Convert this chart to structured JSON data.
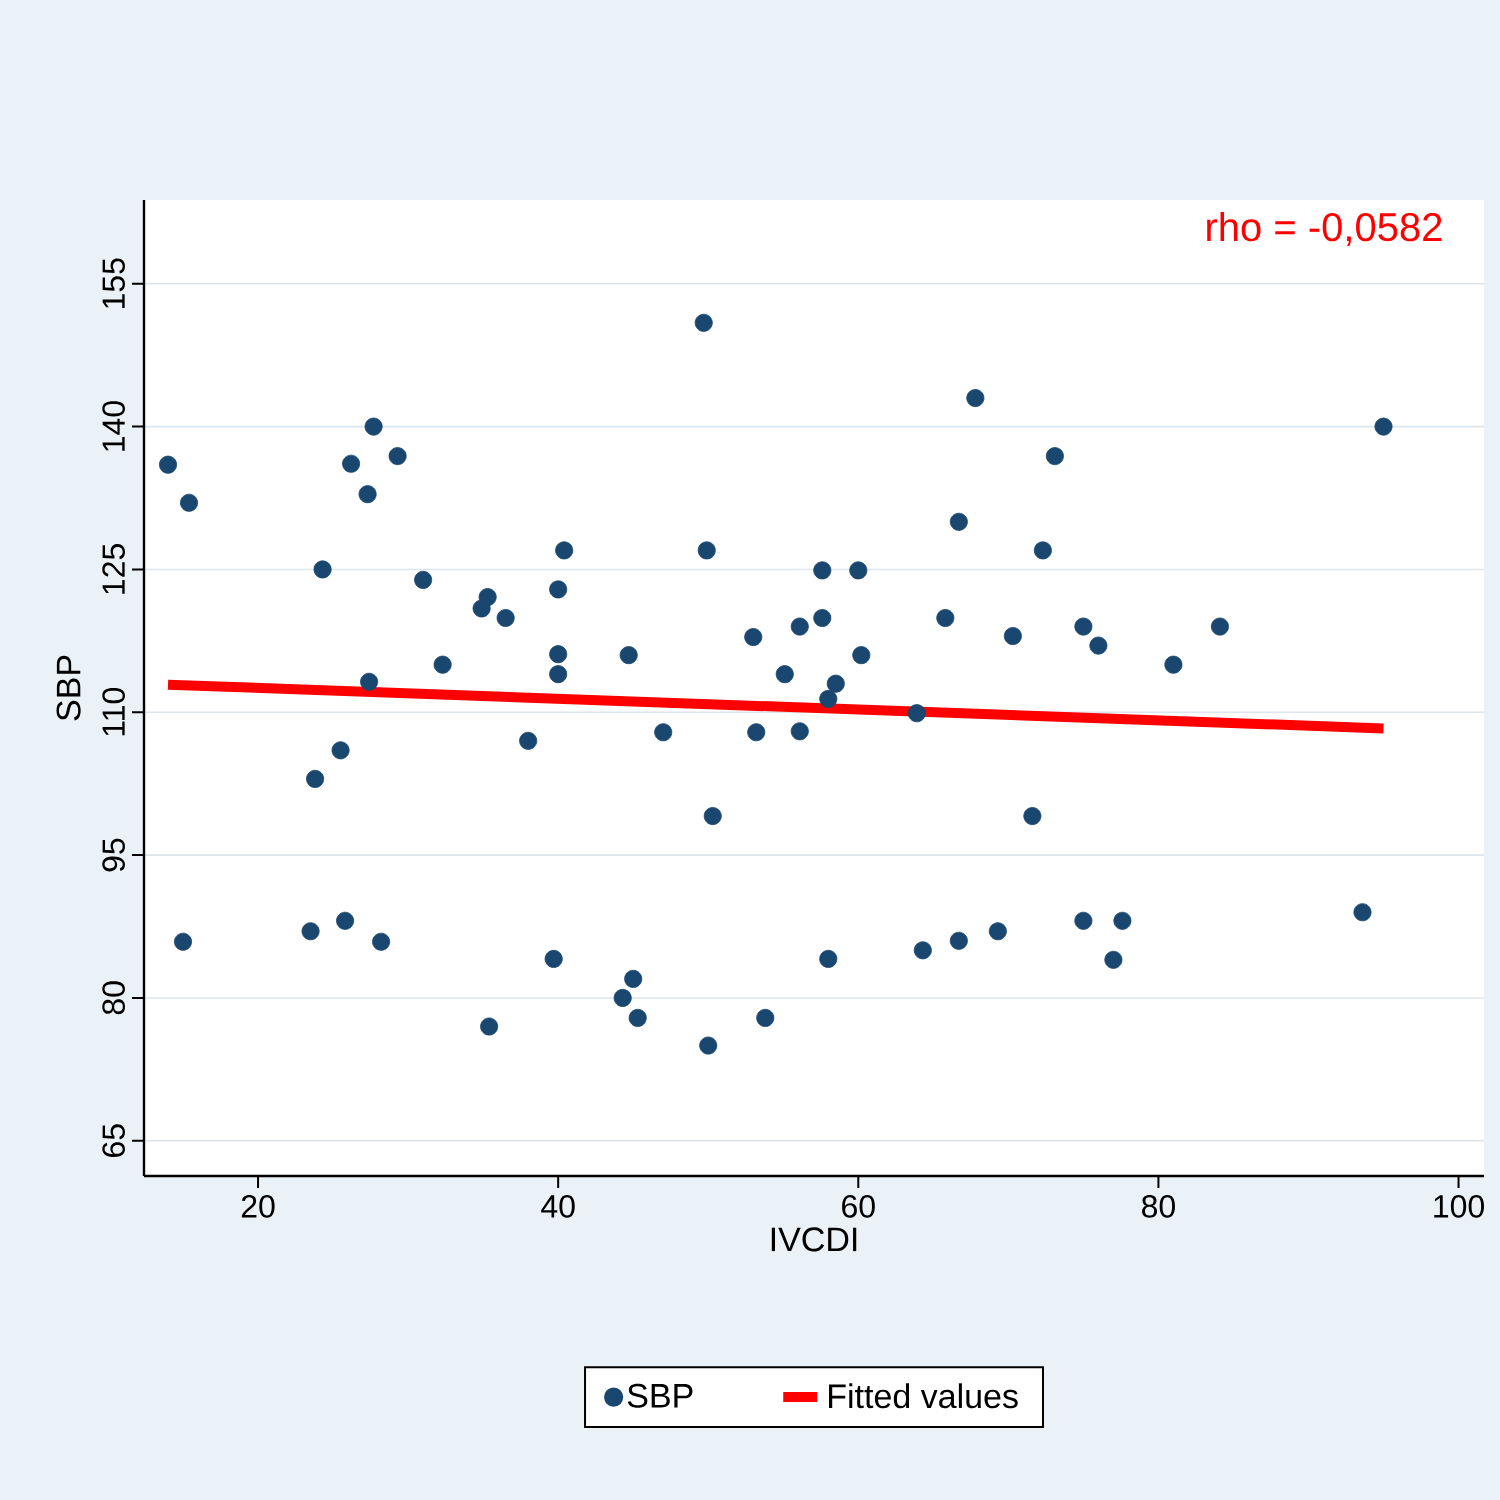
{
  "chart_data": {
    "type": "scatter",
    "xlabel": "IVCDI",
    "ylabel": "SBP",
    "xlim": [
      12.4,
      101.7
    ],
    "ylim": [
      61.3,
      163.8
    ],
    "xticks": [
      20,
      40,
      60,
      80,
      100
    ],
    "yticks": [
      65,
      80,
      95,
      110,
      125,
      140,
      155
    ],
    "grid": "y",
    "legend": "bottom",
    "annotations": [
      "rho = -0,0582"
    ],
    "series": [
      {
        "name": "SBP",
        "color": "#1a476f",
        "marker": "circle",
        "x": [
          14.0,
          15.4,
          15.0,
          24.3,
          23.8,
          25.5,
          23.5,
          25.8,
          28.2,
          26.2,
          27.3,
          27.7,
          29.3,
          27.4,
          31.0,
          32.3,
          34.9,
          35.3,
          36.5,
          35.4,
          38.0,
          40.4,
          40.0,
          40.0,
          40.0,
          39.7,
          44.7,
          44.3,
          45.0,
          45.3,
          47.0,
          49.7,
          49.9,
          50.3,
          50.0,
          53.0,
          53.2,
          53.8,
          55.1,
          56.1,
          56.1,
          57.6,
          57.6,
          58.5,
          58.0,
          58.0,
          60.0,
          60.2,
          63.9,
          64.3,
          65.8,
          66.7,
          66.7,
          67.8,
          69.3,
          70.3,
          71.6,
          72.3,
          73.1,
          75.0,
          75.0,
          76.0,
          77.0,
          77.6,
          81.0,
          84.1,
          93.6,
          95.0
        ],
        "values": [
          136.0,
          132.0,
          85.9,
          125.0,
          103.0,
          106.0,
          87.0,
          88.1,
          85.9,
          136.1,
          132.9,
          140.0,
          136.9,
          113.2,
          123.9,
          115.0,
          120.9,
          122.1,
          119.9,
          77.0,
          107.0,
          127.0,
          122.9,
          116.1,
          114.0,
          84.1,
          116.0,
          80.0,
          82.0,
          77.9,
          107.9,
          150.9,
          127.0,
          99.1,
          75.0,
          117.9,
          107.9,
          77.9,
          114.0,
          119.0,
          108.0,
          124.9,
          119.9,
          113.0,
          111.4,
          84.1,
          124.9,
          116.0,
          109.9,
          85.0,
          119.9,
          130.0,
          86.0,
          143.0,
          87.0,
          118.0,
          99.1,
          127.0,
          136.9,
          119.0,
          88.1,
          117.0,
          84.0,
          88.1,
          115.0,
          119.0,
          89.0,
          140.0
        ]
      },
      {
        "name": "Fitted values",
        "type": "line",
        "color": "#ff0000",
        "x": [
          14.0,
          95.0
        ],
        "values": [
          112.9,
          108.3
        ]
      }
    ]
  }
}
